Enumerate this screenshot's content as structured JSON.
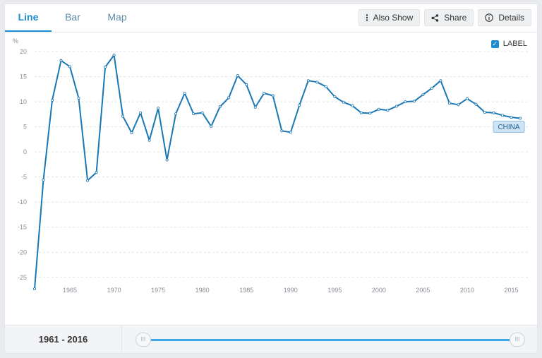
{
  "tabs": [
    {
      "label": "Line",
      "active": true
    },
    {
      "label": "Bar",
      "active": false
    },
    {
      "label": "Map",
      "active": false
    }
  ],
  "toolbar": {
    "also_show_label": "Also Show",
    "share_label": "Share",
    "details_label": "Details",
    "also_show_icon": "vertical-dots-icon",
    "share_icon": "share-icon",
    "details_icon": "info-icon"
  },
  "label_toggle": {
    "label": "LABEL",
    "checked": true
  },
  "colors": {
    "accent": "#1c8dcf",
    "line": "#1a78b4",
    "tag_bg": "#cfe3f5"
  },
  "chart_data": {
    "type": "line",
    "ylabel": "%",
    "ylim": [
      -27,
      20
    ],
    "yticks": [
      20,
      15,
      10,
      5,
      0,
      -5,
      -10,
      -15,
      -20,
      -25
    ],
    "xlim": [
      1961,
      2016
    ],
    "xticks": [
      1965,
      1970,
      1975,
      1980,
      1985,
      1990,
      1995,
      2000,
      2005,
      2010,
      2015
    ],
    "grid": "horizontal-dashed",
    "series": [
      {
        "name": "CHINA",
        "x": [
          1961,
          1962,
          1963,
          1964,
          1965,
          1966,
          1967,
          1968,
          1969,
          1970,
          1971,
          1972,
          1973,
          1974,
          1975,
          1976,
          1977,
          1978,
          1979,
          1980,
          1981,
          1982,
          1983,
          1984,
          1985,
          1986,
          1987,
          1988,
          1989,
          1990,
          1991,
          1992,
          1993,
          1994,
          1995,
          1996,
          1997,
          1998,
          1999,
          2000,
          2001,
          2002,
          2003,
          2004,
          2005,
          2006,
          2007,
          2008,
          2009,
          2010,
          2011,
          2012,
          2013,
          2014,
          2015,
          2016
        ],
        "values": [
          -27.3,
          -5.6,
          10.3,
          18.2,
          17.0,
          10.7,
          -5.7,
          -4.1,
          16.9,
          19.3,
          7.1,
          3.8,
          7.8,
          2.3,
          8.7,
          -1.6,
          7.6,
          11.7,
          7.6,
          7.8,
          5.1,
          9.0,
          10.8,
          15.2,
          13.4,
          8.9,
          11.7,
          11.2,
          4.2,
          3.9,
          9.3,
          14.2,
          13.9,
          13.0,
          11.0,
          9.9,
          9.2,
          7.8,
          7.7,
          8.5,
          8.3,
          9.1,
          10.0,
          10.1,
          11.4,
          12.7,
          14.2,
          9.7,
          9.4,
          10.6,
          9.5,
          7.9,
          7.8,
          7.3,
          6.9,
          6.7
        ]
      }
    ]
  },
  "range": {
    "text": "1961 - 2016"
  }
}
